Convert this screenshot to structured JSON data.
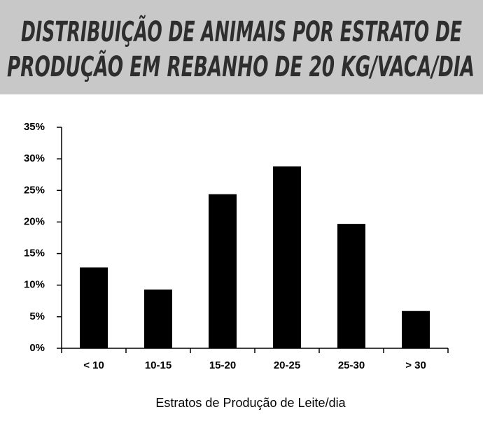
{
  "chart_data": {
    "type": "bar",
    "title": [
      "DISTRIBUIÇÃO DE ANIMAIS POR ESTRATO DE",
      "PRODUÇÃO  EM REBANHO DE 20 KG/VACA/DIA"
    ],
    "x_label": "Estratos de Produção de Leite/dia",
    "categories": [
      "< 10",
      "10-15",
      "15-20",
      "20-25",
      "25-30",
      "> 30"
    ],
    "values": [
      12.8,
      9.3,
      24.4,
      28.8,
      19.7,
      5.9
    ],
    "color": "#000000",
    "ylim": [
      0,
      35
    ],
    "yticks": [
      {
        "value": 0,
        "label": "0%"
      },
      {
        "value": 5,
        "label": "5%"
      },
      {
        "value": 10,
        "label": "10%"
      },
      {
        "value": 15,
        "label": "15%"
      },
      {
        "value": 20,
        "label": "20%"
      },
      {
        "value": 25,
        "label": "25%"
      },
      {
        "value": 30,
        "label": "30%"
      },
      {
        "value": 35,
        "label": "35%"
      }
    ],
    "grid": false
  }
}
